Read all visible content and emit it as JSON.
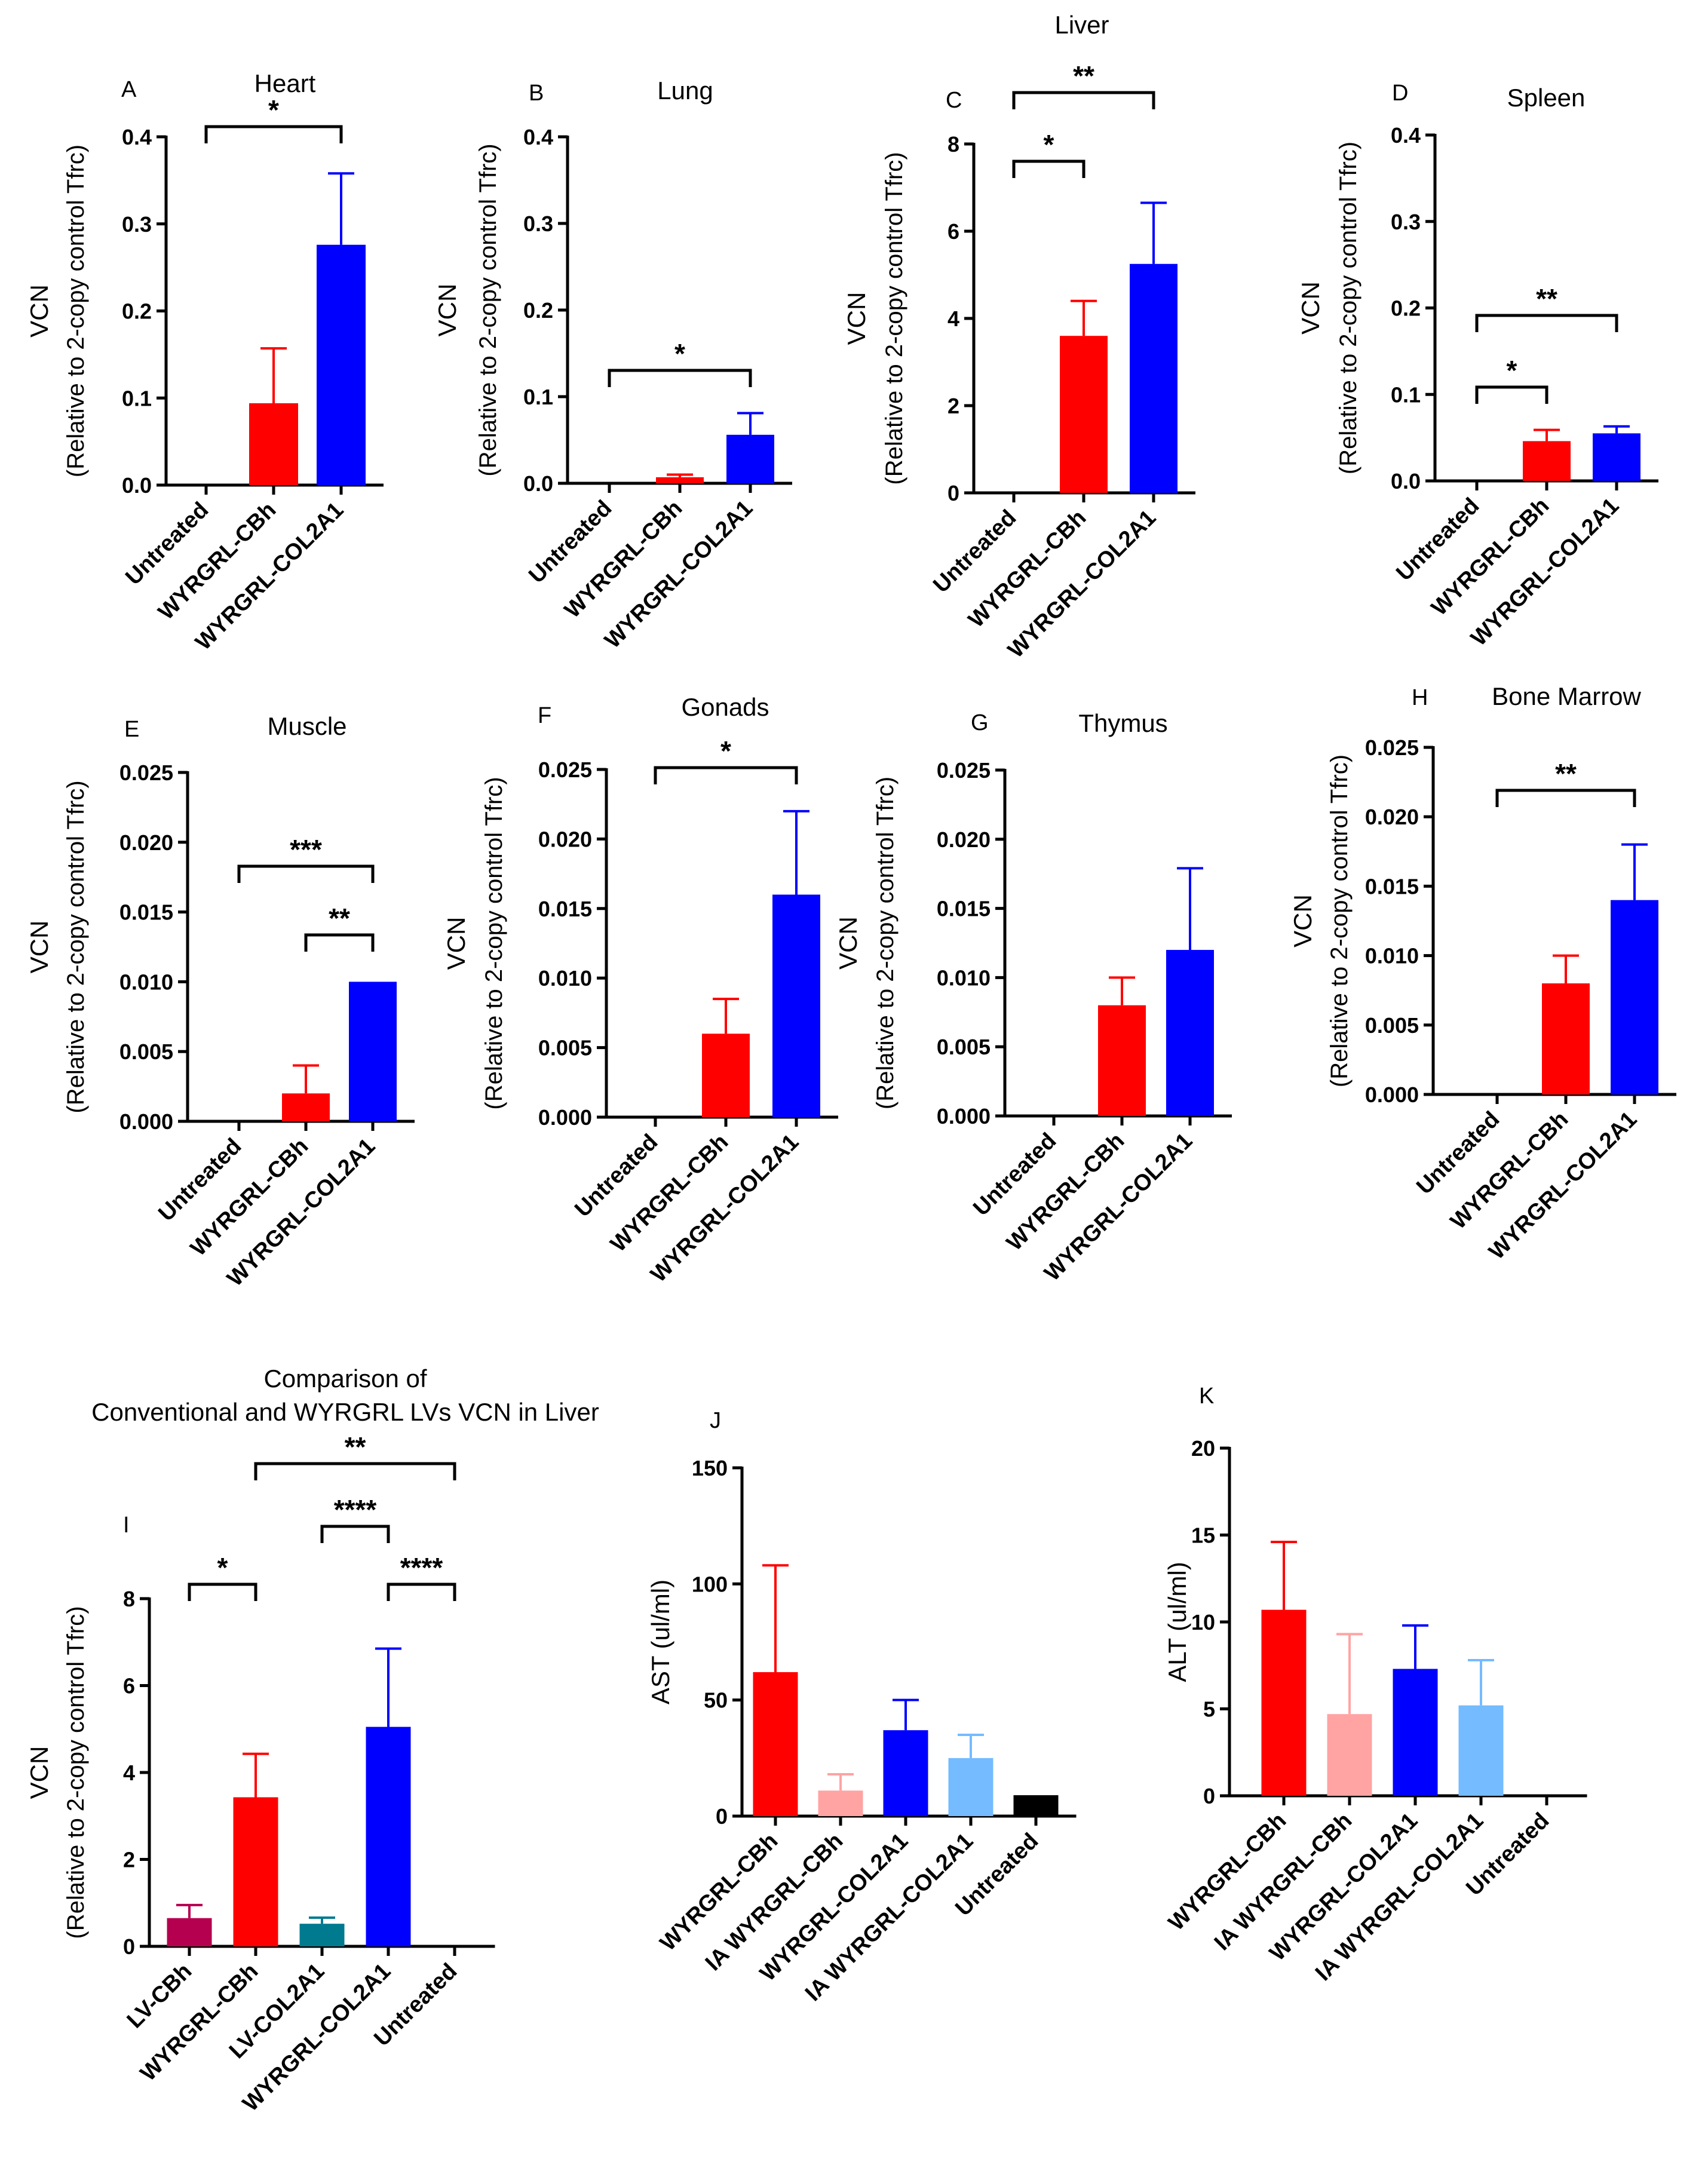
{
  "figure": {
    "colors": {
      "red": "#ff0000",
      "blue": "#0000ff",
      "pink": "#ffa3a3",
      "lightblue": "#74bbff",
      "crimson": "#b5004f",
      "teal": "#007a8f",
      "black": "#000000",
      "axis": "#000000"
    }
  },
  "chart_data": [
    {
      "id": "A",
      "type": "bar",
      "panel_label": "A",
      "title": "Heart",
      "ylabel_line1": "VCN",
      "ylabel_line2": "(Relative to 2-copy control Tfrc)",
      "categories": [
        "Untreated",
        "WYRGRL-CBh",
        "WYRGRL-COL2A1"
      ],
      "values": [
        0,
        0.094,
        0.276
      ],
      "errors": [
        0,
        0.063,
        0.082
      ],
      "colors": [
        "red",
        "red",
        "blue"
      ],
      "ylim": [
        0,
        0.4
      ],
      "ticks": [
        "0.0",
        "0.1",
        "0.2",
        "0.3",
        "0.4"
      ],
      "significance": [
        {
          "from": 0,
          "to": 2,
          "label": "*"
        }
      ]
    },
    {
      "id": "B",
      "type": "bar",
      "panel_label": "B",
      "title": "Lung",
      "ylabel_line1": "VCN",
      "ylabel_line2": "(Relative to 2-copy control Tfrc)",
      "categories": [
        "Untreated",
        "WYRGRL-CBh",
        "WYRGRL-COL2A1"
      ],
      "values": [
        0,
        0.007,
        0.056
      ],
      "errors": [
        0,
        0.003,
        0.025
      ],
      "colors": [
        "red",
        "red",
        "blue"
      ],
      "ylim": [
        0,
        0.4
      ],
      "ticks": [
        "0.0",
        "0.1",
        "0.2",
        "0.3",
        "0.4"
      ],
      "significance": [
        {
          "from": 0,
          "to": 2,
          "label": "*"
        }
      ]
    },
    {
      "id": "C",
      "type": "bar",
      "panel_label": "C",
      "title": "Liver",
      "ylabel_line1": "VCN",
      "ylabel_line2": "(Relative to 2-copy control Tfrc)",
      "categories": [
        "Untreated",
        "WYRGRL-CBh",
        "WYRGRL-COL2A1"
      ],
      "values": [
        0,
        3.6,
        5.25
      ],
      "errors": [
        0,
        0.8,
        1.4
      ],
      "colors": [
        "red",
        "red",
        "blue"
      ],
      "ylim": [
        0,
        8
      ],
      "ticks": [
        "0",
        "2",
        "4",
        "6",
        "8"
      ],
      "significance": [
        {
          "from": 0,
          "to": 1,
          "label": "*"
        },
        {
          "from": 0,
          "to": 2,
          "label": "**"
        }
      ]
    },
    {
      "id": "D",
      "type": "bar",
      "panel_label": "D",
      "title": "Spleen",
      "ylabel_line1": "VCN",
      "ylabel_line2": "(Relative to 2-copy control Tfrc)",
      "categories": [
        "Untreated",
        "WYRGRL-CBh",
        "WYRGRL-COL2A1"
      ],
      "values": [
        0,
        0.046,
        0.055
      ],
      "errors": [
        0,
        0.013,
        0.008
      ],
      "colors": [
        "red",
        "red",
        "blue"
      ],
      "ylim": [
        0,
        0.4
      ],
      "ticks": [
        "0.0",
        "0.1",
        "0.2",
        "0.3",
        "0.4"
      ],
      "significance": [
        {
          "from": 0,
          "to": 1,
          "label": "*"
        },
        {
          "from": 0,
          "to": 2,
          "label": "**"
        }
      ]
    },
    {
      "id": "E",
      "type": "bar",
      "panel_label": "E",
      "title": "Muscle",
      "ylabel_line1": "VCN",
      "ylabel_line2": "(Relative to 2-copy control Tfrc)",
      "categories": [
        "Untreated",
        "WYRGRL-CBh",
        "WYRGRL-COL2A1"
      ],
      "values": [
        0,
        0.002,
        0.01
      ],
      "errors": [
        0,
        0.002,
        0
      ],
      "colors": [
        "red",
        "red",
        "blue"
      ],
      "ylim": [
        0,
        0.025
      ],
      "ticks": [
        "0.000",
        "0.005",
        "0.010",
        "0.015",
        "0.020",
        "0.025"
      ],
      "significance": [
        {
          "from": 0,
          "to": 2,
          "label": "***"
        },
        {
          "from": 1,
          "to": 2,
          "label": "**"
        }
      ]
    },
    {
      "id": "F",
      "type": "bar",
      "panel_label": "F",
      "title": "Gonads",
      "ylabel_line1": "VCN",
      "ylabel_line2": "(Relative to 2-copy control Tfrc)",
      "categories": [
        "Untreated",
        "WYRGRL-CBh",
        "WYRGRL-COL2A1"
      ],
      "values": [
        0,
        0.006,
        0.016
      ],
      "errors": [
        0,
        0.0025,
        0.006
      ],
      "colors": [
        "red",
        "red",
        "blue"
      ],
      "ylim": [
        0,
        0.025
      ],
      "ticks": [
        "0.000",
        "0.005",
        "0.010",
        "0.015",
        "0.020",
        "0.025"
      ],
      "significance": [
        {
          "from": 0,
          "to": 2,
          "label": "*"
        }
      ]
    },
    {
      "id": "G",
      "type": "bar",
      "panel_label": "G",
      "title": "Thymus",
      "ylabel_line1": "VCN",
      "ylabel_line2": "(Relative to 2-copy control Tfrc)",
      "categories": [
        "Untreated",
        "WYRGRL-CBh",
        "WYRGRL-COL2A1"
      ],
      "values": [
        0,
        0.008,
        0.012
      ],
      "errors": [
        0,
        0.002,
        0.0059
      ],
      "colors": [
        "red",
        "red",
        "blue"
      ],
      "ylim": [
        0,
        0.025
      ],
      "ticks": [
        "0.000",
        "0.005",
        "0.010",
        "0.015",
        "0.020",
        "0.025"
      ],
      "significance": []
    },
    {
      "id": "H",
      "type": "bar",
      "panel_label": "H",
      "title": "Bone Marrow",
      "ylabel_line1": "VCN",
      "ylabel_line2": "(Relative to 2-copy control Tfrc)",
      "categories": [
        "Untreated",
        "WYRGRL-CBh",
        "WYRGRL-COL2A1"
      ],
      "values": [
        0,
        0.008,
        0.014
      ],
      "errors": [
        0,
        0.002,
        0.004
      ],
      "colors": [
        "red",
        "red",
        "blue"
      ],
      "ylim": [
        0,
        0.025
      ],
      "ticks": [
        "0.000",
        "0.005",
        "0.010",
        "0.015",
        "0.020",
        "0.025"
      ],
      "significance": [
        {
          "from": 0,
          "to": 2,
          "label": "**"
        }
      ]
    },
    {
      "id": "I",
      "type": "bar",
      "panel_label": "I",
      "title_line1": "Comparison of",
      "title_line2": "Conventional and WYRGRL LVs VCN in Liver",
      "ylabel_line1": "VCN",
      "ylabel_line2": "(Relative to 2-copy control Tfrc)",
      "categories": [
        "LV-CBh",
        "WYRGRL-CBh",
        "LV-COL2A1",
        "WYRGRL-COL2A1",
        "Untreated"
      ],
      "values": [
        0.65,
        3.43,
        0.52,
        5.05,
        0
      ],
      "errors": [
        0.3,
        1.0,
        0.14,
        1.8,
        0
      ],
      "colors": [
        "crimson",
        "red",
        "teal",
        "blue",
        "blue"
      ],
      "ylim": [
        0,
        8
      ],
      "ticks": [
        "0",
        "2",
        "4",
        "6",
        "8"
      ],
      "significance": [
        {
          "from": 0,
          "to": 1,
          "label": "*"
        },
        {
          "from": 2,
          "to": 3,
          "label": "****"
        },
        {
          "from": 3,
          "to": 4,
          "label": "****"
        },
        {
          "from": 1,
          "to": 4,
          "label": "**"
        }
      ]
    },
    {
      "id": "J",
      "type": "bar",
      "panel_label": "J",
      "ylabel_line1": "AST (ul/ml)",
      "categories": [
        "WYRGRL-CBh",
        "IA WYRGRL-CBh",
        "WYRGRL-COL2A1",
        "IA WYRGRL-COL2A1",
        "Untreated"
      ],
      "values": [
        62,
        11,
        37,
        25,
        9
      ],
      "errors": [
        46,
        7,
        13,
        10,
        0
      ],
      "colors": [
        "red",
        "pink",
        "blue",
        "lightblue",
        "black"
      ],
      "ylim": [
        0,
        150
      ],
      "ticks": [
        "0",
        "50",
        "100",
        "150"
      ],
      "significance": []
    },
    {
      "id": "K",
      "type": "bar",
      "panel_label": "K",
      "ylabel_line1": "ALT (ul/ml)",
      "categories": [
        "WYRGRL-CBh",
        "IA WYRGRL-CBh",
        "WYRGRL-COL2A1",
        "IA WYRGRL-COL2A1",
        "Untreated"
      ],
      "values": [
        10.7,
        4.7,
        7.3,
        5.2,
        0
      ],
      "errors": [
        3.9,
        4.6,
        2.5,
        2.6,
        0
      ],
      "colors": [
        "red",
        "pink",
        "blue",
        "lightblue",
        "black"
      ],
      "ylim": [
        0,
        20
      ],
      "ticks": [
        "0",
        "5",
        "10",
        "15",
        "20"
      ],
      "significance": []
    }
  ]
}
